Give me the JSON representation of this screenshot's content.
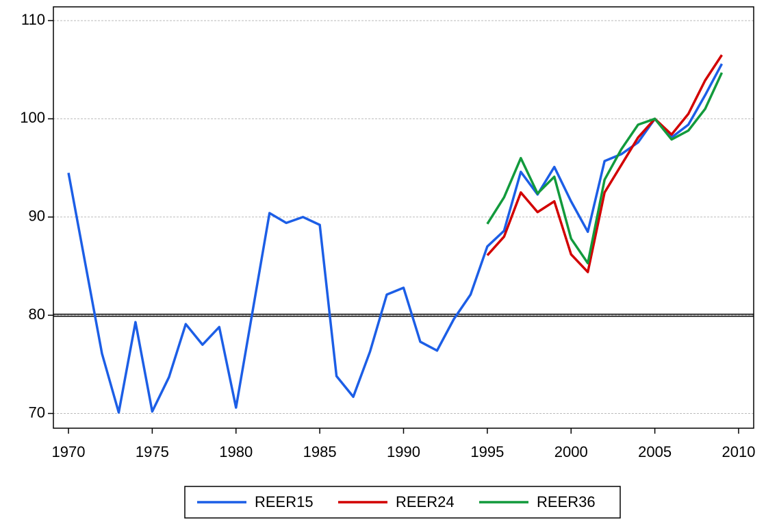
{
  "chart_data": {
    "type": "line",
    "x": [
      1970,
      1971,
      1972,
      1973,
      1974,
      1975,
      1976,
      1977,
      1978,
      1979,
      1980,
      1981,
      1982,
      1983,
      1984,
      1985,
      1986,
      1987,
      1988,
      1989,
      1990,
      1991,
      1992,
      1993,
      1994,
      1995,
      1996,
      1997,
      1998,
      1999,
      2000,
      2001,
      2002,
      2003,
      2004,
      2005,
      2006,
      2007,
      2008,
      2009
    ],
    "series": [
      {
        "name": "REER15",
        "color": "#1c5ee6",
        "values": [
          94.5,
          85.3,
          76.1,
          70.1,
          79.3,
          70.2,
          73.7,
          79.1,
          77.0,
          78.8,
          70.6,
          80.5,
          90.4,
          89.4,
          90.0,
          89.2,
          73.8,
          71.7,
          76.3,
          82.1,
          82.8,
          77.3,
          76.4,
          79.6,
          82.1,
          87.0,
          88.6,
          94.6,
          92.3,
          95.1,
          91.6,
          88.5,
          95.7,
          96.4,
          97.6,
          100.0,
          98.1,
          99.4,
          102.4,
          105.6
        ]
      },
      {
        "name": "REER24",
        "color": "#d20000",
        "values": [
          null,
          null,
          null,
          null,
          null,
          null,
          null,
          null,
          null,
          null,
          null,
          null,
          null,
          null,
          null,
          null,
          null,
          null,
          null,
          null,
          null,
          null,
          null,
          null,
          null,
          86.1,
          88.0,
          92.5,
          90.5,
          91.6,
          86.2,
          84.4,
          92.5,
          95.3,
          98.1,
          100.0,
          98.4,
          100.5,
          103.9,
          106.5
        ]
      },
      {
        "name": "REER36",
        "color": "#129a3c",
        "values": [
          null,
          null,
          null,
          null,
          null,
          null,
          null,
          null,
          null,
          null,
          null,
          null,
          null,
          null,
          null,
          null,
          null,
          null,
          null,
          null,
          null,
          null,
          null,
          null,
          null,
          89.3,
          92.0,
          96.0,
          92.4,
          94.1,
          87.8,
          85.3,
          93.8,
          96.9,
          99.4,
          100.0,
          97.9,
          98.8,
          101.0,
          104.7
        ]
      }
    ],
    "xlim": [
      1969.1,
      2010.9
    ],
    "xticks": [
      1970,
      1975,
      1980,
      1985,
      1990,
      1995,
      2000,
      2005,
      2010
    ],
    "ylim": [
      68.5,
      111.4
    ],
    "yticks": [
      70,
      80,
      90,
      100,
      110
    ],
    "grid": true,
    "hline": 80,
    "legend": "bottom"
  }
}
